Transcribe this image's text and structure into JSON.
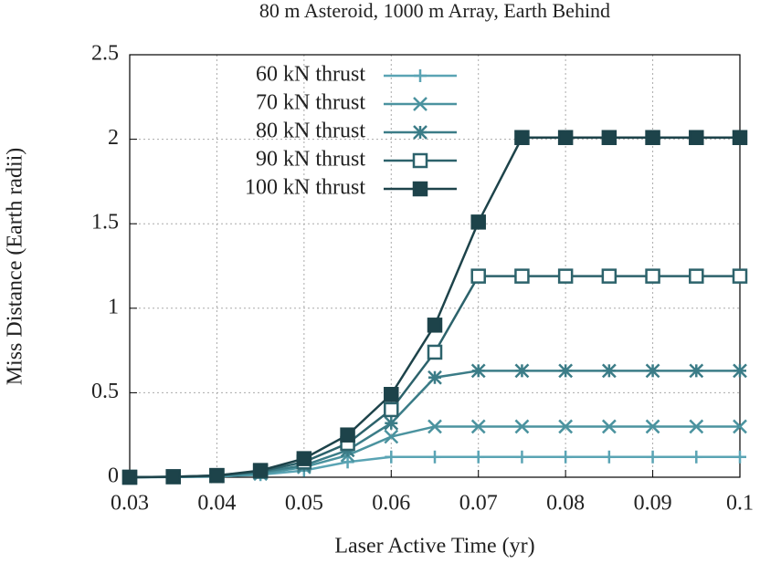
{
  "chart_data": {
    "type": "line",
    "title": "80 m Asteroid, 1000 m Array, Earth Behind",
    "x_label": "Laser Active Time (yr)",
    "y_label": "Miss Distance (Earth radii)",
    "x": [
      0.03,
      0.035,
      0.04,
      0.045,
      0.05,
      0.055,
      0.06,
      0.065,
      0.07,
      0.075,
      0.08,
      0.085,
      0.09,
      0.095,
      0.1
    ],
    "series": [
      {
        "name": "60 kN thrust",
        "color": "#5aa4b4",
        "marker": "plus",
        "values": [
          0,
          0.001,
          0.004,
          0.015,
          0.04,
          0.09,
          0.12,
          0.12,
          0.12,
          0.12,
          0.12,
          0.12,
          0.12,
          0.12,
          0.12
        ]
      },
      {
        "name": "70 kN thrust",
        "color": "#4b939f",
        "marker": "cross",
        "values": [
          0,
          0.002,
          0.006,
          0.02,
          0.06,
          0.13,
          0.24,
          0.3,
          0.3,
          0.3,
          0.3,
          0.3,
          0.3,
          0.3,
          0.3
        ]
      },
      {
        "name": "80 kN thrust",
        "color": "#3b7c87",
        "marker": "star",
        "values": [
          0,
          0.002,
          0.008,
          0.03,
          0.07,
          0.16,
          0.32,
          0.59,
          0.63,
          0.63,
          0.63,
          0.63,
          0.63,
          0.63,
          0.63
        ]
      },
      {
        "name": "90 kN thrust",
        "color": "#2c626b",
        "marker": "open-square",
        "values": [
          0,
          0.003,
          0.01,
          0.035,
          0.09,
          0.2,
          0.4,
          0.74,
          1.19,
          1.19,
          1.19,
          1.19,
          1.19,
          1.19,
          1.19
        ]
      },
      {
        "name": "100 kN thrust",
        "color": "#1d434a",
        "marker": "filled-square",
        "values": [
          0,
          0.003,
          0.01,
          0.04,
          0.11,
          0.25,
          0.49,
          0.9,
          1.51,
          2.01,
          2.01,
          2.01,
          2.01,
          2.01,
          2.01
        ]
      }
    ],
    "xlim": [
      0.03,
      0.1
    ],
    "xticks": [
      0.03,
      0.04,
      0.05,
      0.06,
      0.07,
      0.08,
      0.09,
      0.1
    ],
    "ylim": [
      0,
      2.5
    ],
    "yticks": [
      0,
      0.5,
      1,
      1.5,
      2,
      2.5
    ],
    "grid": true,
    "legend": "top-left"
  }
}
